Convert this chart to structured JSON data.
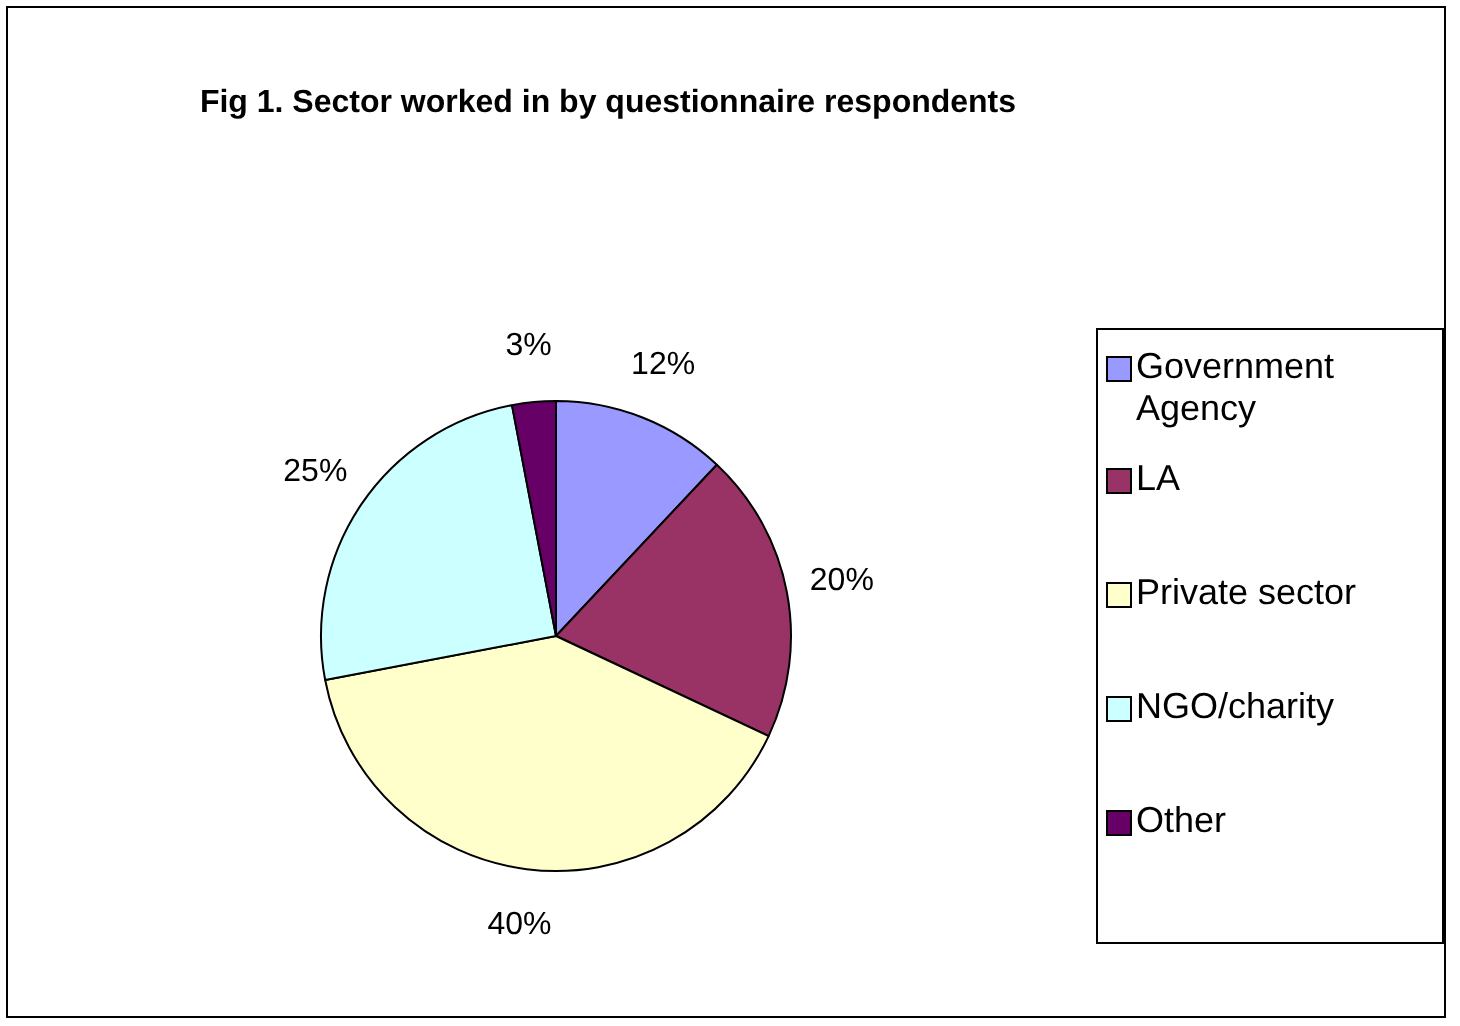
{
  "chart_data": {
    "type": "pie",
    "title": "Fig 1. Sector worked in by questionnaire respondents",
    "categories": [
      "Government Agency",
      "LA",
      "Private sector",
      "NGO/charity",
      "Other"
    ],
    "values": [
      12,
      20,
      40,
      25,
      3
    ],
    "colors": [
      "#9999ff",
      "#993366",
      "#ffffcc",
      "#ccffff",
      "#660066"
    ],
    "value_labels": [
      "12%",
      "20%",
      "40%",
      "25%",
      "3%"
    ],
    "legend": "right"
  }
}
